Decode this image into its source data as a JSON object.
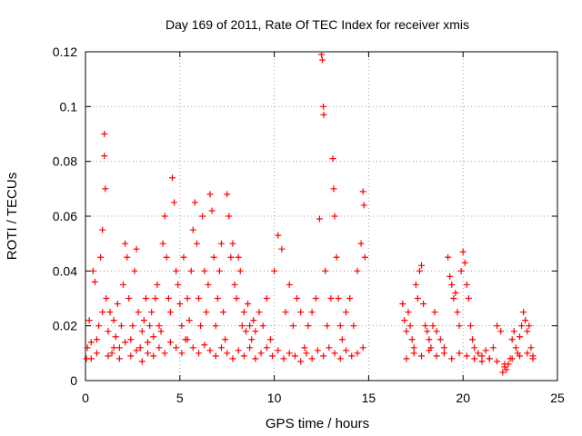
{
  "chart_data": {
    "type": "scatter",
    "title": "Day 169 of 2011, Rate Of TEC Index for receiver xmis",
    "xlabel": "GPS time / hours",
    "ylabel": "ROTI / TECUs",
    "xlim": [
      0,
      25
    ],
    "ylim": [
      0,
      0.12
    ],
    "x_ticks": [
      "0",
      "5",
      "10",
      "15",
      "20",
      "25"
    ],
    "y_ticks": [
      "0",
      "0.02",
      "0.04",
      "0.06",
      "0.08",
      "0.1",
      "0.12"
    ],
    "grid": true,
    "marker": "plus",
    "color": "#ff0000",
    "series": [
      {
        "points": [
          [
            0.1,
            0.012
          ],
          [
            0.2,
            0.022
          ],
          [
            0.3,
            0.008
          ],
          [
            0.4,
            0.04
          ],
          [
            0.5,
            0.036
          ],
          [
            0.6,
            0.015
          ],
          [
            0.7,
            0.02
          ],
          [
            0.8,
            0.045
          ],
          [
            0.9,
            0.055
          ],
          [
            1.0,
            0.09
          ],
          [
            1.0,
            0.082
          ],
          [
            1.05,
            0.07
          ],
          [
            1.1,
            0.03
          ],
          [
            1.2,
            0.018
          ],
          [
            1.3,
            0.025
          ],
          [
            1.4,
            0.01
          ],
          [
            1.5,
            0.022
          ],
          [
            1.6,
            0.016
          ],
          [
            1.7,
            0.028
          ],
          [
            1.8,
            0.012
          ],
          [
            1.9,
            0.02
          ],
          [
            2.0,
            0.035
          ],
          [
            2.1,
            0.05
          ],
          [
            2.2,
            0.045
          ],
          [
            2.3,
            0.03
          ],
          [
            2.4,
            0.015
          ],
          [
            2.5,
            0.02
          ],
          [
            2.6,
            0.04
          ],
          [
            2.7,
            0.048
          ],
          [
            2.8,
            0.025
          ],
          [
            2.9,
            0.012
          ],
          [
            3.0,
            0.018
          ],
          [
            3.1,
            0.022
          ],
          [
            3.2,
            0.03
          ],
          [
            3.3,
            0.014
          ],
          [
            3.4,
            0.02
          ],
          [
            3.5,
            0.025
          ],
          [
            3.6,
            0.016
          ],
          [
            3.7,
            0.03
          ],
          [
            3.8,
            0.035
          ],
          [
            3.9,
            0.02
          ],
          [
            4.0,
            0.018
          ],
          [
            4.1,
            0.05
          ],
          [
            4.2,
            0.06
          ],
          [
            4.3,
            0.045
          ],
          [
            4.4,
            0.03
          ],
          [
            4.5,
            0.025
          ],
          [
            4.6,
            0.074
          ],
          [
            4.7,
            0.065
          ],
          [
            4.8,
            0.04
          ],
          [
            4.9,
            0.035
          ],
          [
            5.0,
            0.028
          ],
          [
            5.1,
            0.02
          ],
          [
            5.2,
            0.045
          ],
          [
            5.3,
            0.015
          ],
          [
            5.4,
            0.03
          ],
          [
            5.5,
            0.022
          ],
          [
            5.6,
            0.04
          ],
          [
            5.7,
            0.055
          ],
          [
            5.8,
            0.065
          ],
          [
            5.9,
            0.05
          ],
          [
            6.0,
            0.03
          ],
          [
            6.1,
            0.02
          ],
          [
            6.2,
            0.06
          ],
          [
            6.3,
            0.04
          ],
          [
            6.4,
            0.025
          ],
          [
            6.5,
            0.035
          ],
          [
            6.6,
            0.068
          ],
          [
            6.7,
            0.062
          ],
          [
            6.8,
            0.045
          ],
          [
            6.9,
            0.02
          ],
          [
            7.0,
            0.03
          ],
          [
            7.1,
            0.04
          ],
          [
            7.2,
            0.05
          ],
          [
            7.3,
            0.025
          ],
          [
            7.4,
            0.015
          ],
          [
            7.5,
            0.068
          ],
          [
            7.6,
            0.06
          ],
          [
            7.7,
            0.045
          ],
          [
            7.8,
            0.05
          ],
          [
            7.9,
            0.035
          ],
          [
            8.0,
            0.03
          ],
          [
            8.1,
            0.045
          ],
          [
            8.2,
            0.04
          ],
          [
            8.3,
            0.02
          ],
          [
            8.4,
            0.025
          ],
          [
            8.5,
            0.018
          ],
          [
            8.6,
            0.028
          ],
          [
            8.7,
            0.02
          ],
          [
            8.8,
            0.015
          ],
          [
            8.9,
            0.022
          ],
          [
            9.0,
            0.018
          ],
          [
            9.2,
            0.025
          ],
          [
            9.4,
            0.02
          ],
          [
            9.6,
            0.03
          ],
          [
            9.8,
            0.015
          ],
          [
            10.0,
            0.04
          ],
          [
            10.2,
            0.053
          ],
          [
            10.4,
            0.048
          ],
          [
            10.6,
            0.025
          ],
          [
            10.8,
            0.035
          ],
          [
            11.0,
            0.02
          ],
          [
            11.2,
            0.03
          ],
          [
            11.4,
            0.025
          ],
          [
            11.6,
            0.012
          ],
          [
            11.8,
            0.02
          ],
          [
            12.0,
            0.025
          ],
          [
            12.2,
            0.03
          ],
          [
            12.4,
            0.059
          ],
          [
            12.5,
            0.119
          ],
          [
            12.55,
            0.117
          ],
          [
            12.6,
            0.1
          ],
          [
            12.62,
            0.097
          ],
          [
            12.7,
            0.04
          ],
          [
            12.8,
            0.02
          ],
          [
            13.0,
            0.03
          ],
          [
            13.1,
            0.081
          ],
          [
            13.15,
            0.07
          ],
          [
            13.2,
            0.06
          ],
          [
            13.3,
            0.045
          ],
          [
            13.4,
            0.03
          ],
          [
            13.5,
            0.02
          ],
          [
            13.6,
            0.015
          ],
          [
            13.8,
            0.025
          ],
          [
            14.0,
            0.03
          ],
          [
            14.2,
            0.02
          ],
          [
            14.4,
            0.04
          ],
          [
            14.6,
            0.05
          ],
          [
            14.7,
            0.069
          ],
          [
            14.75,
            0.064
          ],
          [
            14.8,
            0.045
          ],
          [
            0.05,
            0.008
          ],
          [
            0.3,
            0.014
          ],
          [
            0.6,
            0.01
          ],
          [
            0.9,
            0.025
          ],
          [
            1.2,
            0.009
          ],
          [
            1.5,
            0.012
          ],
          [
            1.8,
            0.008
          ],
          [
            2.1,
            0.014
          ],
          [
            2.4,
            0.009
          ],
          [
            2.7,
            0.011
          ],
          [
            3.0,
            0.007
          ],
          [
            3.3,
            0.01
          ],
          [
            3.6,
            0.009
          ],
          [
            3.9,
            0.012
          ],
          [
            4.2,
            0.01
          ],
          [
            4.5,
            0.014
          ],
          [
            4.8,
            0.012
          ],
          [
            5.1,
            0.01
          ],
          [
            5.4,
            0.015
          ],
          [
            5.7,
            0.012
          ],
          [
            6.0,
            0.01
          ],
          [
            6.3,
            0.013
          ],
          [
            6.6,
            0.011
          ],
          [
            6.9,
            0.009
          ],
          [
            7.2,
            0.012
          ],
          [
            7.5,
            0.01
          ],
          [
            7.8,
            0.008
          ],
          [
            8.1,
            0.011
          ],
          [
            8.4,
            0.009
          ],
          [
            8.7,
            0.012
          ],
          [
            9.0,
            0.008
          ],
          [
            9.3,
            0.01
          ],
          [
            9.6,
            0.012
          ],
          [
            9.9,
            0.009
          ],
          [
            10.2,
            0.011
          ],
          [
            10.5,
            0.008
          ],
          [
            10.8,
            0.01
          ],
          [
            11.1,
            0.009
          ],
          [
            11.4,
            0.007
          ],
          [
            11.7,
            0.01
          ],
          [
            12.0,
            0.008
          ],
          [
            12.3,
            0.011
          ],
          [
            12.6,
            0.009
          ],
          [
            12.9,
            0.012
          ],
          [
            13.2,
            0.01
          ],
          [
            13.5,
            0.008
          ],
          [
            13.8,
            0.011
          ],
          [
            14.1,
            0.009
          ],
          [
            14.4,
            0.01
          ],
          [
            14.7,
            0.012
          ],
          [
            16.8,
            0.028
          ],
          [
            16.9,
            0.022
          ],
          [
            17.0,
            0.018
          ],
          [
            17.1,
            0.025
          ],
          [
            17.2,
            0.02
          ],
          [
            17.3,
            0.015
          ],
          [
            17.4,
            0.012
          ],
          [
            17.5,
            0.035
          ],
          [
            17.6,
            0.03
          ],
          [
            17.7,
            0.04
          ],
          [
            17.8,
            0.042
          ],
          [
            17.9,
            0.028
          ],
          [
            18.0,
            0.02
          ],
          [
            18.1,
            0.018
          ],
          [
            18.2,
            0.015
          ],
          [
            18.3,
            0.012
          ],
          [
            18.4,
            0.02
          ],
          [
            18.5,
            0.025
          ],
          [
            18.6,
            0.018
          ],
          [
            18.8,
            0.015
          ],
          [
            19.0,
            0.012
          ],
          [
            19.2,
            0.045
          ],
          [
            19.3,
            0.038
          ],
          [
            19.4,
            0.035
          ],
          [
            19.5,
            0.03
          ],
          [
            19.6,
            0.032
          ],
          [
            19.7,
            0.025
          ],
          [
            19.8,
            0.02
          ],
          [
            19.9,
            0.04
          ],
          [
            20.0,
            0.047
          ],
          [
            20.1,
            0.043
          ],
          [
            20.2,
            0.035
          ],
          [
            20.3,
            0.03
          ],
          [
            20.4,
            0.02
          ],
          [
            20.5,
            0.015
          ],
          [
            20.6,
            0.012
          ],
          [
            20.8,
            0.01
          ],
          [
            21.0,
            0.009
          ],
          [
            21.2,
            0.011
          ],
          [
            21.4,
            0.008
          ],
          [
            21.6,
            0.012
          ],
          [
            21.8,
            0.02
          ],
          [
            22.0,
            0.018
          ],
          [
            22.1,
            0.003
          ],
          [
            22.2,
            0.005
          ],
          [
            22.3,
            0.004
          ],
          [
            22.4,
            0.006
          ],
          [
            22.5,
            0.008
          ],
          [
            22.6,
            0.015
          ],
          [
            22.7,
            0.018
          ],
          [
            22.8,
            0.012
          ],
          [
            22.9,
            0.01
          ],
          [
            23.0,
            0.016
          ],
          [
            23.1,
            0.02
          ],
          [
            23.2,
            0.025
          ],
          [
            23.3,
            0.022
          ],
          [
            23.4,
            0.018
          ],
          [
            23.5,
            0.02
          ],
          [
            23.6,
            0.012
          ],
          [
            23.7,
            0.008
          ],
          [
            17.0,
            0.008
          ],
          [
            17.4,
            0.01
          ],
          [
            17.8,
            0.009
          ],
          [
            18.2,
            0.011
          ],
          [
            18.6,
            0.009
          ],
          [
            19.0,
            0.01
          ],
          [
            19.4,
            0.008
          ],
          [
            19.8,
            0.01
          ],
          [
            20.2,
            0.009
          ],
          [
            20.6,
            0.008
          ],
          [
            21.0,
            0.007
          ],
          [
            21.4,
            0.008
          ],
          [
            21.8,
            0.007
          ],
          [
            22.2,
            0.006
          ],
          [
            22.6,
            0.008
          ],
          [
            23.0,
            0.009
          ],
          [
            23.4,
            0.01
          ],
          [
            23.7,
            0.009
          ]
        ]
      }
    ]
  }
}
